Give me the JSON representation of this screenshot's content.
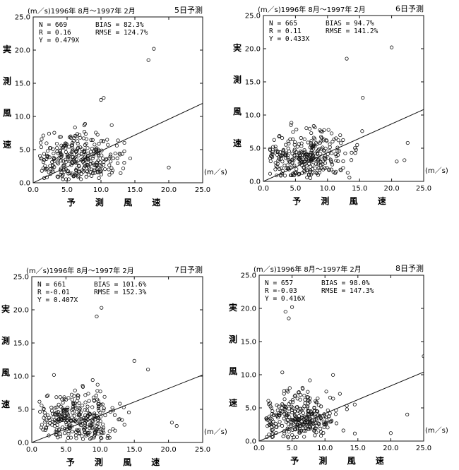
{
  "chart_data": [
    {
      "type": "scatter",
      "header": "(m／s)1996年 8月～1997年 2月",
      "forecast_day": "5日予測",
      "stats": {
        "n": "N = 669",
        "r": "R = 0.16",
        "y": "Y = 0.479X",
        "bias": "BIAS = 82.3%",
        "rmse": "RMSE = 124.7%"
      },
      "slope": 0.479,
      "xlim": [
        0,
        25
      ],
      "ylim": [
        0,
        25
      ],
      "xticks": [
        "0.0",
        "5.0",
        "10.0",
        "15.0",
        "20.0",
        "25.0"
      ],
      "yticks": [
        "0.0",
        "5.0",
        "10.0",
        "15.0",
        "20.0",
        "25.0"
      ],
      "xunit": "(m／s)",
      "xlabel": "予 測 風 速",
      "ylabel": [
        "実",
        "測",
        "風",
        "速"
      ],
      "outliers": [
        [
          17.0,
          18.5
        ],
        [
          17.8,
          20.2
        ],
        [
          10.4,
          12.8
        ],
        [
          10.0,
          12.5
        ],
        [
          20.0,
          2.3
        ]
      ]
    },
    {
      "type": "scatter",
      "header": "(m／s)1996年 8月～1997年 2月",
      "forecast_day": "6日予測",
      "stats": {
        "n": "N = 665",
        "r": "R = 0.11",
        "y": "Y = 0.433X",
        "bias": "BIAS = 94.7%",
        "rmse": "RMSE = 141.2%"
      },
      "slope": 0.433,
      "xlim": [
        0,
        25
      ],
      "ylim": [
        0,
        25
      ],
      "xticks": [
        "0.0",
        "5.0",
        "10.0",
        "15.0",
        "20.0",
        "25.0"
      ],
      "yticks": [
        "0.0",
        "5.0",
        "10.0",
        "15.0",
        "20.0",
        "25.0"
      ],
      "xunit": "(m／s)",
      "xlabel": "予 測 風 速",
      "ylabel": [
        "実",
        "測",
        "風",
        "速"
      ],
      "outliers": [
        [
          20.0,
          20.2
        ],
        [
          13.0,
          18.5
        ],
        [
          15.5,
          12.6
        ],
        [
          22.5,
          5.8
        ],
        [
          22.0,
          3.2
        ],
        [
          20.8,
          3.0
        ]
      ]
    },
    {
      "type": "scatter",
      "header": "(m／s)1996年 8月～1997年 2月",
      "forecast_day": "7日予測",
      "stats": {
        "n": "N = 661",
        "r": "R =-0.01",
        "y": "Y = 0.407X",
        "bias": "BIAS = 101.6%",
        "rmse": "RMSE = 152.3%"
      },
      "slope": 0.407,
      "xlim": [
        0,
        25
      ],
      "ylim": [
        0,
        25
      ],
      "xticks": [
        "0.0",
        "5.0",
        "10.0",
        "15.0",
        "20.0",
        "25.0"
      ],
      "yticks": [
        "0.0",
        "5.0",
        "10.0",
        "15.0",
        "20.0",
        "25.0"
      ],
      "xunit": "(m／s)",
      "xlabel": "予 測 風 速",
      "ylabel": [
        "実",
        "測",
        "風",
        "速"
      ],
      "outliers": [
        [
          9.5,
          19.0
        ],
        [
          10.2,
          20.3
        ],
        [
          15.0,
          12.3
        ],
        [
          17.0,
          11.0
        ],
        [
          20.5,
          3.0
        ],
        [
          21.2,
          2.5
        ]
      ]
    },
    {
      "type": "scatter",
      "header": "(m／s)1996年 8月～1997年 2月",
      "forecast_day": "8日予測",
      "stats": {
        "n": "N = 657",
        "r": "R =-0.03",
        "y": "Y = 0.416X",
        "bias": "BIAS = 98.0%",
        "rmse": "RMSE = 147.3%"
      },
      "slope": 0.416,
      "xlim": [
        0,
        25
      ],
      "ylim": [
        0,
        25
      ],
      "xticks": [
        "0.0",
        "5.0",
        "10.0",
        "15.0",
        "20.0",
        "25.0"
      ],
      "yticks": [
        "0.0",
        "5.0",
        "10.0",
        "15.0",
        "20.0",
        "25.0"
      ],
      "xunit": "(m／s)",
      "xlabel": "予 測 風 速",
      "ylabel": [
        "実",
        "測",
        "風",
        "速"
      ],
      "outliers": [
        [
          4.0,
          19.5
        ],
        [
          5.0,
          20.2
        ],
        [
          4.5,
          18.5
        ],
        [
          25.0,
          12.8
        ],
        [
          22.5,
          4.0
        ],
        [
          20.0,
          1.2
        ]
      ]
    }
  ]
}
